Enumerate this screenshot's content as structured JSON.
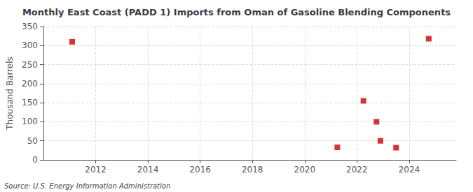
{
  "chart_data": {
    "type": "scatter",
    "title": "Monthly East Coast (PADD 1) Imports from Oman of Gasoline Blending Components",
    "ylabel": "Thousand Barrels",
    "annotations": [
      "Source: U.S. Energy Information Administration"
    ],
    "x": [
      2011.1,
      2021.25,
      2022.25,
      2022.75,
      2022.9,
      2023.5,
      2024.75
    ],
    "values": [
      310,
      33,
      155,
      100,
      50,
      32,
      318
    ],
    "color": "#cc0000",
    "marker": "square",
    "xlim": [
      2010.0,
      2025.8
    ],
    "xticks": [
      2012,
      2014,
      2016,
      2018,
      2020,
      2022,
      2024
    ],
    "ylim": [
      0,
      350
    ],
    "yticks": [
      0,
      50,
      100,
      150,
      200,
      250,
      300,
      350
    ],
    "grid": true
  }
}
